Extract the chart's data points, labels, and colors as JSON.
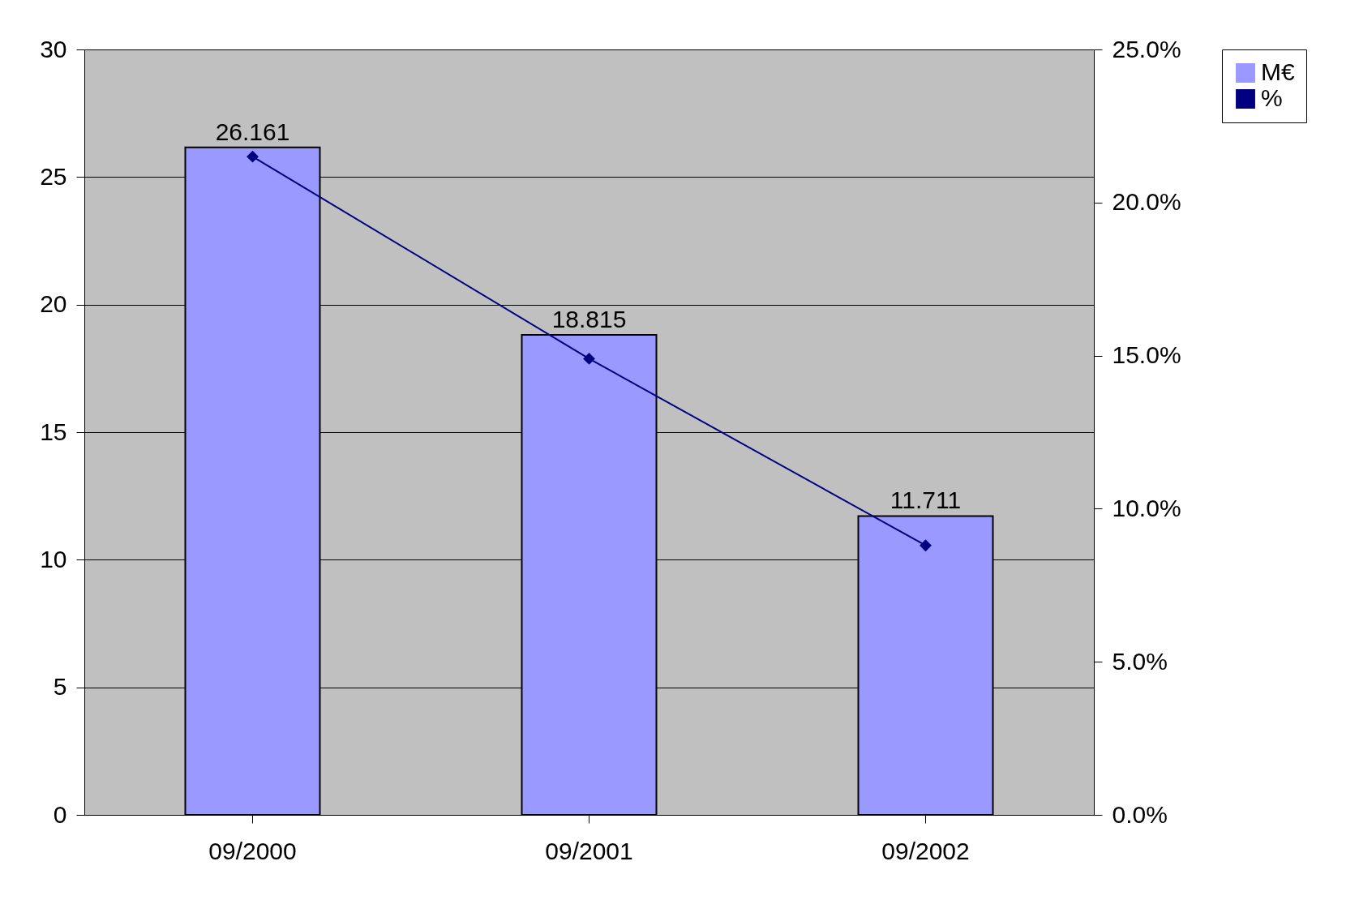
{
  "chart_data": {
    "type": "bar",
    "categories": [
      "09/2000",
      "09/2001",
      "09/2002"
    ],
    "series": [
      {
        "name": "M€",
        "color": "#9999ff",
        "values": [
          26.161,
          18.815,
          11.711
        ],
        "value_labels": [
          "26.161",
          "18.815",
          "11.711"
        ]
      },
      {
        "name": "%",
        "type": "line",
        "axis": "y2",
        "color": "#000080",
        "marker": "diamond",
        "values": [
          21.5,
          14.9,
          8.8
        ]
      }
    ],
    "ylim": [
      0,
      30
    ],
    "yticks": [
      0,
      5,
      10,
      15,
      20,
      25,
      30
    ],
    "y2lim": [
      0,
      25
    ],
    "y2ticks": [
      {
        "value": 0,
        "label": "0.0%"
      },
      {
        "value": 5,
        "label": "5.0%"
      },
      {
        "value": 10,
        "label": "10.0%"
      },
      {
        "value": 15,
        "label": "15.0%"
      },
      {
        "value": 20,
        "label": "20.0%"
      },
      {
        "value": 25,
        "label": "25.0%"
      }
    ],
    "grid": "y",
    "legend": "right"
  }
}
